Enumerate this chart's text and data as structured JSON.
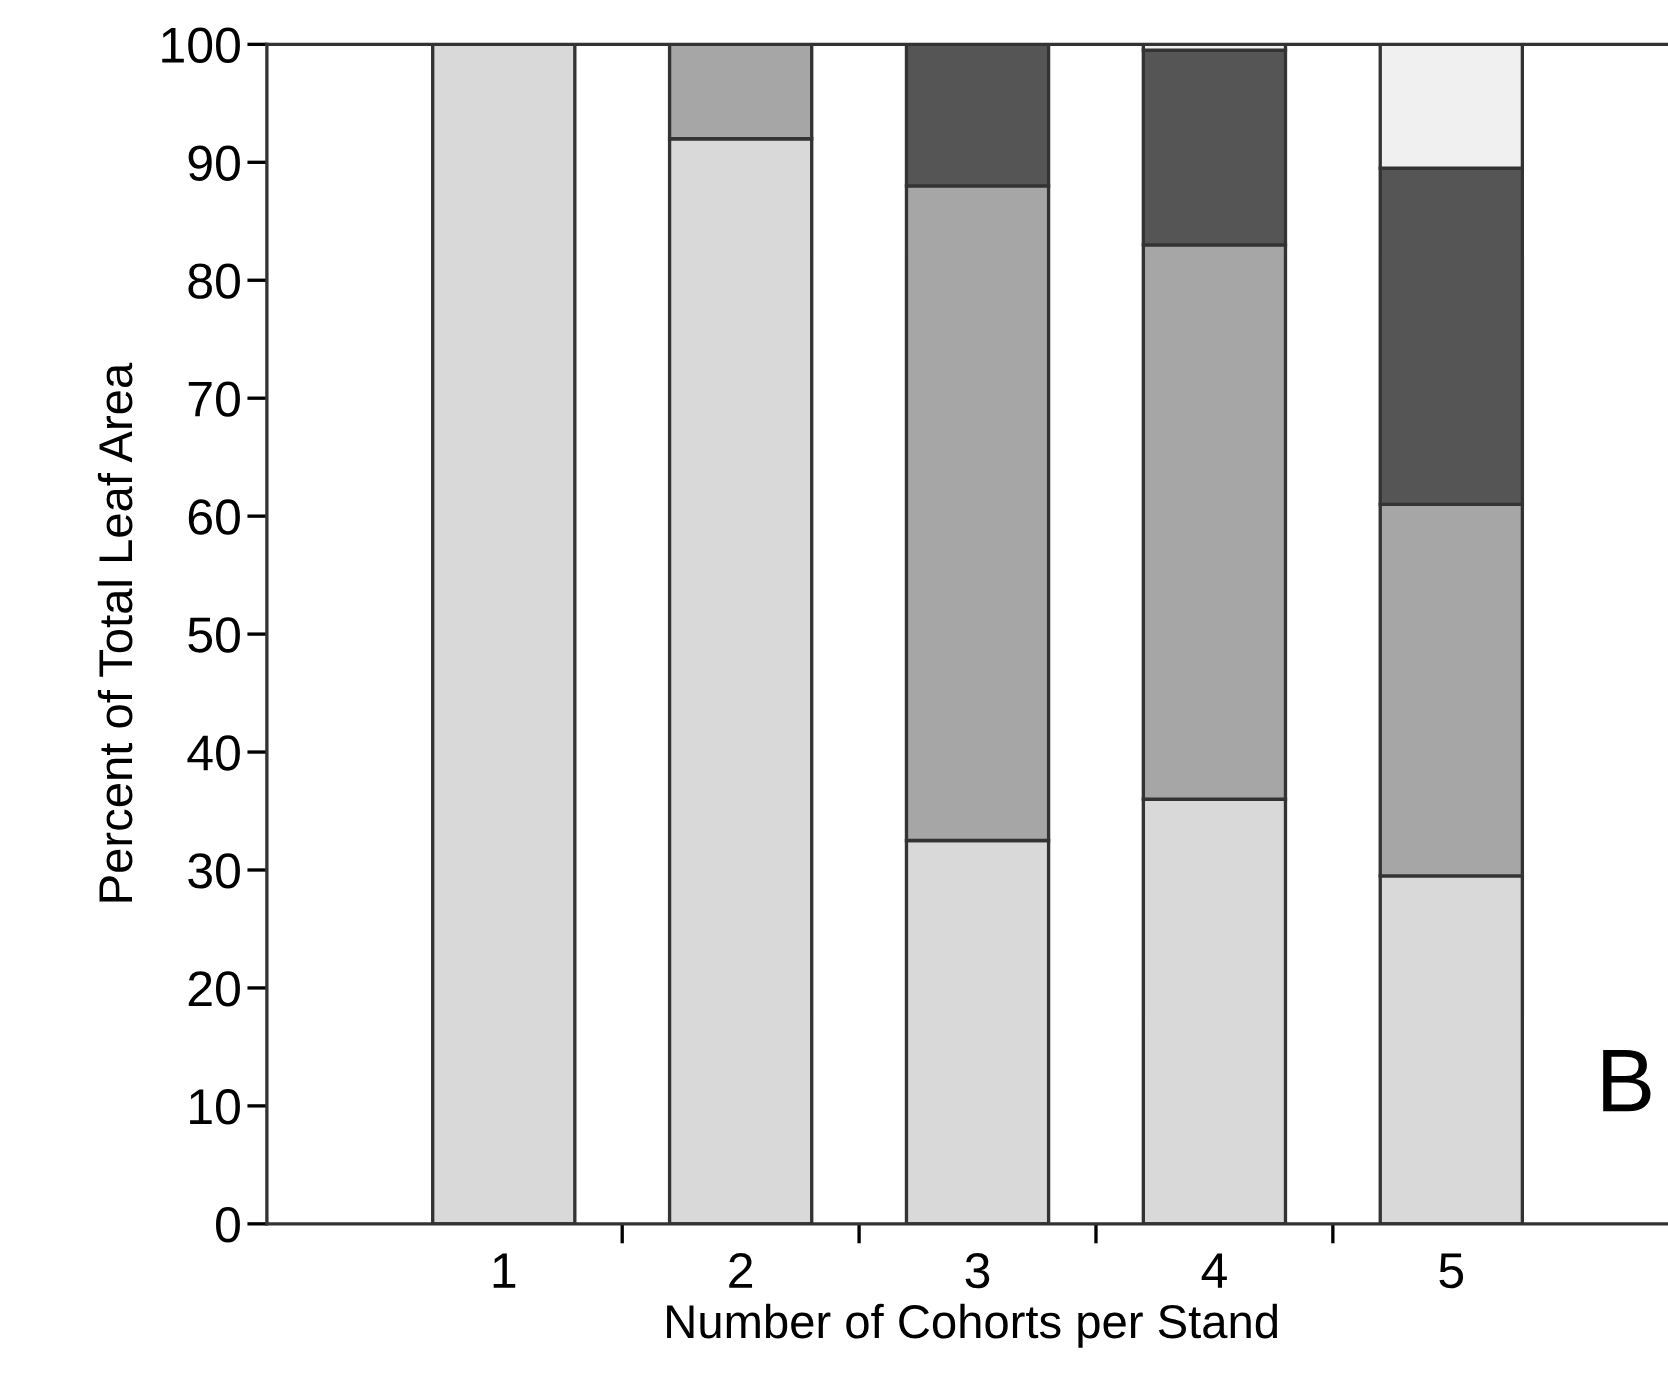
{
  "chart_data": {
    "type": "bar",
    "stacked": true,
    "categories": [
      "1",
      "2",
      "3",
      "4",
      "5"
    ],
    "series": [
      {
        "color": "#d9d9d9",
        "values": [
          100,
          92,
          32.5,
          36,
          29.5
        ]
      },
      {
        "color": "#a6a6a6",
        "values": [
          null,
          8,
          55.5,
          47,
          31.5
        ]
      },
      {
        "color": "#555555",
        "values": [
          null,
          null,
          12,
          16.5,
          28.5
        ]
      },
      {
        "color": "#f0f0f0",
        "values": [
          null,
          null,
          null,
          0.5,
          10.5
        ]
      }
    ],
    "ylim": [
      0,
      100
    ],
    "yticks": [
      0,
      10,
      20,
      30,
      40,
      50,
      60,
      70,
      80,
      90,
      100
    ],
    "xlabel": "Number of Cohorts per Stand",
    "ylabel": "Percent of Total Leaf Area",
    "annotations": [
      "B"
    ]
  }
}
